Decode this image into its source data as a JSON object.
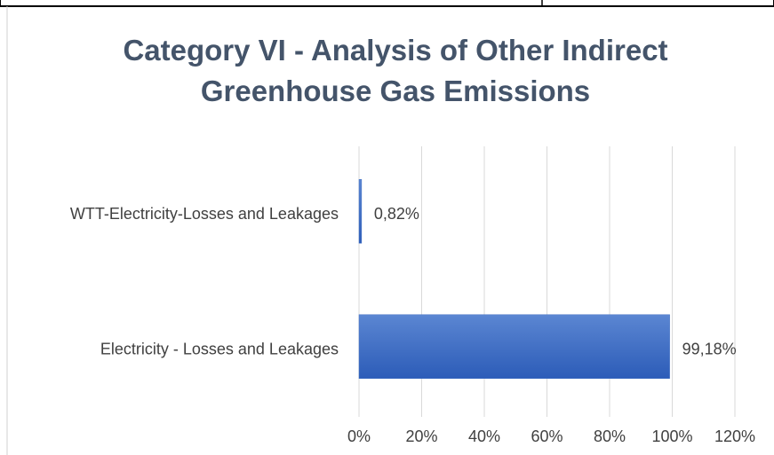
{
  "chart_data": {
    "type": "hbar",
    "title": "Category VI - Analysis of Other Indirect Greenhouse Gas Emissions",
    "categories": [
      "WTT-Electricity-Losses and Leakages",
      "Electricity - Losses and Leakages"
    ],
    "values": [
      0.82,
      99.18
    ],
    "value_labels": [
      "0,82%",
      "99,18%"
    ],
    "color": "#4472c4",
    "xlim": [
      0,
      120
    ],
    "xticks": [
      {
        "value": 0,
        "label": "0%"
      },
      {
        "value": 20,
        "label": "20%"
      },
      {
        "value": 40,
        "label": "40%"
      },
      {
        "value": 60,
        "label": "60%"
      },
      {
        "value": 80,
        "label": "80%"
      },
      {
        "value": 100,
        "label": "100%"
      },
      {
        "value": 120,
        "label": "120%"
      }
    ],
    "grid": true
  }
}
